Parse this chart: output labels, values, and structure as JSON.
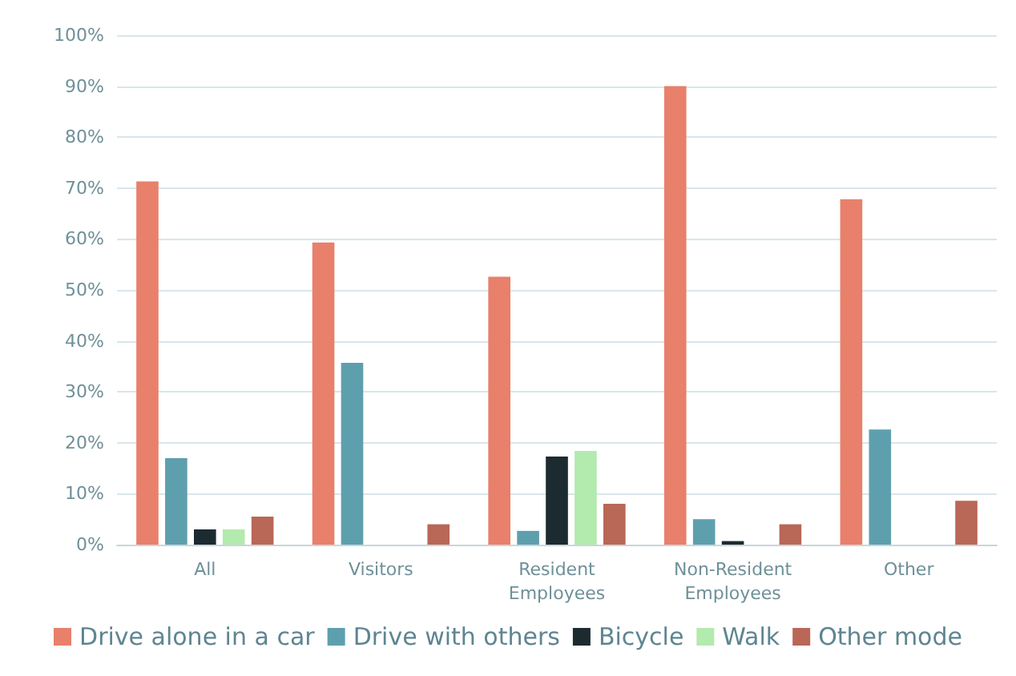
{
  "chart_data": {
    "type": "bar",
    "categories": [
      "All",
      "Visitors",
      "Resident\nEmployees",
      "Non-Resident\nEmployees",
      "Other"
    ],
    "series": [
      {
        "name": "Drive alone in a car",
        "color": "#e8806b",
        "values": [
          71.3,
          59.3,
          52.6,
          90,
          67.8
        ]
      },
      {
        "name": "Drive with others",
        "color": "#5e9fae",
        "values": [
          17,
          35.7,
          2.7,
          5,
          22.6
        ]
      },
      {
        "name": "Bicycle",
        "color": "#1c2b30",
        "values": [
          3,
          null,
          17.3,
          0.7,
          null
        ]
      },
      {
        "name": "Walk",
        "color": "#b3eaad",
        "values": [
          3,
          null,
          18.4,
          null,
          null
        ]
      },
      {
        "name": "Other mode",
        "color": "#b96756",
        "values": [
          5.5,
          4,
          8,
          4,
          8.6
        ]
      }
    ],
    "ylim": [
      0,
      100
    ],
    "yticks": [
      {
        "value": 0,
        "label": "0%"
      },
      {
        "value": 10,
        "label": "10%"
      },
      {
        "value": 20,
        "label": "20%"
      },
      {
        "value": 30,
        "label": "30%"
      },
      {
        "value": 40,
        "label": "40%"
      },
      {
        "value": 50,
        "label": "50%"
      },
      {
        "value": 60,
        "label": "60%"
      },
      {
        "value": 70,
        "label": "70%"
      },
      {
        "value": 80,
        "label": "80%"
      },
      {
        "value": 90,
        "label": "90%"
      },
      {
        "value": 100,
        "label": "100%"
      }
    ],
    "grid": "y",
    "legend": "bottom"
  }
}
